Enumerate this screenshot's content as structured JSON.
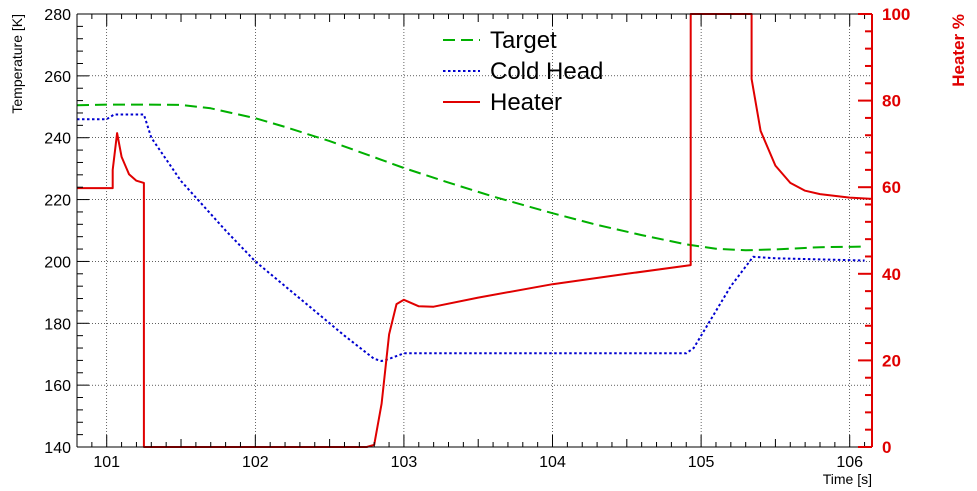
{
  "chart_data": {
    "type": "line",
    "xlabel": "Time [s]",
    "ylabel": "Temperature [K]",
    "y2label": "Heater %",
    "xlim": [
      100.8,
      106.15
    ],
    "ylim": [
      140,
      280
    ],
    "y2lim": [
      0,
      100
    ],
    "x_ticks": [
      101,
      102,
      103,
      104,
      105,
      106
    ],
    "y_ticks": [
      140,
      160,
      180,
      200,
      220,
      240,
      260,
      280
    ],
    "y2_ticks": [
      0,
      20,
      40,
      60,
      80,
      100
    ],
    "grid": true,
    "legend_position": "top-center",
    "colors": {
      "axis_right": "#e00000"
    },
    "series": [
      {
        "name": "Target",
        "axis": "left",
        "style": "dashed",
        "color": "#00b000",
        "x": [
          100.8,
          101.0,
          101.2,
          101.5,
          101.7,
          102.0,
          102.2,
          102.5,
          102.8,
          103.0,
          103.3,
          103.6,
          104.0,
          104.3,
          104.6,
          104.9,
          105.1,
          105.3,
          105.5,
          105.8,
          106.1
        ],
        "y": [
          250.5,
          250.7,
          250.7,
          250.6,
          249.5,
          246.3,
          243.5,
          238.9,
          233.7,
          230.2,
          225.5,
          221.0,
          215.6,
          211.8,
          208.5,
          205.5,
          204.1,
          203.6,
          203.9,
          204.6,
          204.8
        ]
      },
      {
        "name": "Cold Head",
        "axis": "left",
        "style": "dotted",
        "color": "#0000d0",
        "x": [
          100.8,
          101.0,
          101.05,
          101.2,
          101.25,
          101.3,
          101.5,
          101.8,
          102.0,
          102.3,
          102.6,
          102.8,
          102.85,
          102.9,
          103.0,
          103.5,
          104.0,
          104.5,
          104.9,
          104.95,
          105.2,
          105.35,
          105.5,
          106.1
        ],
        "y": [
          246,
          246,
          247.5,
          247.5,
          247.5,
          240,
          226,
          210,
          200,
          188,
          176,
          168.5,
          167.8,
          168.5,
          170.3,
          170.3,
          170.3,
          170.3,
          170.3,
          172,
          192,
          201.5,
          201,
          200.3
        ]
      },
      {
        "name": "Heater",
        "axis": "right",
        "style": "solid",
        "color": "#e00000",
        "x": [
          100.8,
          101.04,
          101.04,
          101.07,
          101.1,
          101.15,
          101.2,
          101.25,
          101.25,
          101.5,
          102.0,
          102.5,
          102.75,
          102.8,
          102.85,
          102.9,
          102.95,
          103.0,
          103.1,
          103.2,
          103.5,
          104.0,
          104.5,
          104.93,
          104.93,
          105.34,
          105.34,
          105.4,
          105.5,
          105.6,
          105.7,
          105.8,
          106.0,
          106.15
        ],
        "y": [
          59.8,
          59.8,
          64,
          72.5,
          67,
          63,
          61.5,
          61,
          0,
          0,
          0,
          0,
          0,
          0.5,
          10,
          26,
          33,
          34,
          32.5,
          32.4,
          34.5,
          37.6,
          40,
          42,
          100,
          100,
          85,
          73,
          65,
          61,
          59.2,
          58.4,
          57.6,
          57.3
        ]
      }
    ]
  }
}
